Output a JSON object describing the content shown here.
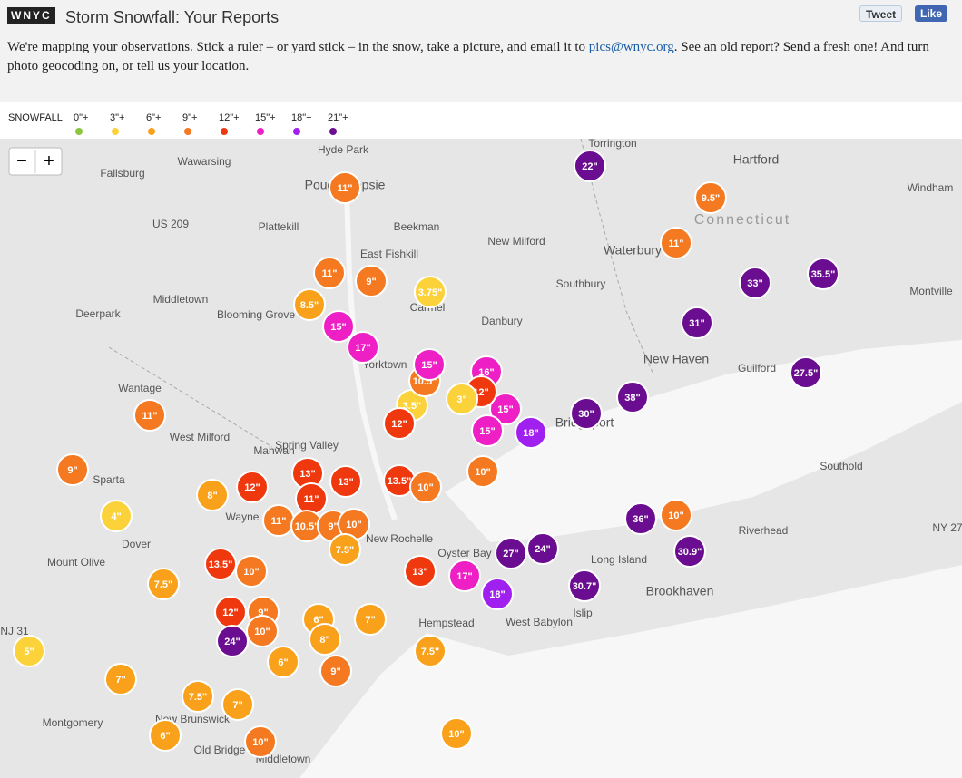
{
  "header": {
    "logo": "WNYC",
    "title": "Storm Snowfall: Your Reports",
    "tweet": "Tweet",
    "like": "Like"
  },
  "intro": {
    "before": "We're mapping your observations. Stick a ruler – or yard stick – in the snow, take a picture, and email it to ",
    "link": "pics@wnyc.org",
    "after": ". See an old report? Send a fresh one! And turn photo geocoding on, or tell us your location."
  },
  "legend": {
    "title": "SNOWFALL",
    "items": [
      {
        "label": "0\"+",
        "color": "#8cc63f"
      },
      {
        "label": "3\"+",
        "color": "#fcd23a"
      },
      {
        "label": "6\"+",
        "color": "#f9a11b"
      },
      {
        "label": "9\"+",
        "color": "#f47920"
      },
      {
        "label": "12\"+",
        "color": "#f0380f"
      },
      {
        "label": "15\"+",
        "color": "#ee1fc4"
      },
      {
        "label": "18\"+",
        "color": "#a020f0"
      },
      {
        "label": "21\"+",
        "color": "#6a0d91"
      }
    ]
  },
  "zoom": {
    "out": "−",
    "in": "+"
  },
  "places": [
    "Torrington",
    "Hartford",
    "Windham",
    "Connecticut",
    "Hyde Park",
    "Fallsburg",
    "Wawarsing",
    "Poughkeepsie",
    "US 209",
    "Plattekill",
    "Beekman",
    "New Milford",
    "Waterbury",
    "East Fishkill",
    "Southbury",
    "Middletown",
    "Deerpark",
    "Blooming Grove",
    "Carmel",
    "Danbury",
    "Montville",
    "New Haven",
    "Guilford",
    "Yorktown",
    "Wantage",
    "West Milford",
    "Mahwah",
    "Spring Valley",
    "Bridgeport",
    "Sparta",
    "Wayne",
    "New Rochelle",
    "Southold",
    "Dover",
    "Mount Olive",
    "Oyster Bay",
    "Long Island",
    "Riverhead",
    "Brookhaven",
    "Hempstead",
    "West Babylon",
    "Islip",
    "Montgomery",
    "New Brunswick",
    "Old Bridge",
    "Middletown",
    "NY 27",
    "NJ 31"
  ],
  "reports": [
    "22\"",
    "9.5\"",
    "11\"",
    "33\"",
    "35.5\"",
    "31\"",
    "27.5\"",
    "38\"",
    "30\"",
    "18\"",
    "16\"",
    "15\"",
    "15\"",
    "12\"",
    "3\"",
    "3.5\"",
    "10.5\"",
    "15\"",
    "12\"",
    "11\"",
    "11\"",
    "9\"",
    "3.75\"",
    "8.5\"",
    "15\"",
    "17\"",
    "11\"",
    "9\"",
    "4\"",
    "8\"",
    "12\"",
    "13\"",
    "13\"",
    "13.5\"",
    "10\"",
    "10\"",
    "11\"",
    "11\"",
    "10.5\"",
    "9\"",
    "10\"",
    "7.5\"",
    "13.5\"",
    "10\"",
    "7.5\"",
    "13\"",
    "17\"",
    "27\"",
    "24\"",
    "18\"",
    "30.7\"",
    "36\"",
    "10\"",
    "30.9\"",
    "12\"",
    "9\"",
    "6\"",
    "7\"",
    "10\"",
    "24\"",
    "8\"",
    "6\"",
    "9\"",
    "7.5\"",
    "5\"",
    "7\"",
    "7.5\"",
    "7\"",
    "6\"",
    "10\"",
    "10\""
  ]
}
